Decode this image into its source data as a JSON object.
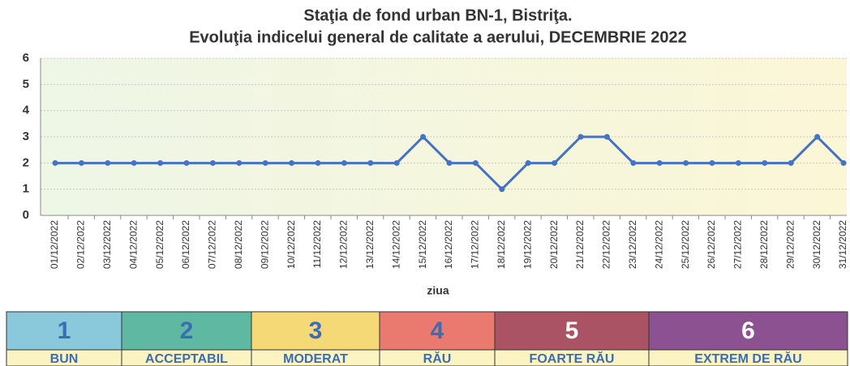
{
  "chart_data": {
    "type": "line",
    "title": "Staţia de fond urban BN-1, Bistriţa.",
    "subtitle": "Evoluţia indicelui general de calitate a aerului, DECEMBRIE 2022",
    "xlabel": "ziua",
    "categories": [
      "01/12/2022",
      "02/12/2022",
      "03/12/2022",
      "04/12/2022",
      "05/12/2022",
      "06/12/2022",
      "07/12/2022",
      "08/12/2022",
      "09/12/2022",
      "10/12/2022",
      "11/12/2022",
      "12/12/2022",
      "13/12/2022",
      "14/12/2022",
      "15/12/2022",
      "16/12/2022",
      "17/12/2022",
      "18/12/2022",
      "19/12/2022",
      "20/12/2022",
      "21/12/2022",
      "22/12/2022",
      "23/12/2022",
      "24/12/2022",
      "25/12/2022",
      "26/12/2022",
      "27/12/2022",
      "28/12/2022",
      "29/12/2022",
      "30/12/2022",
      "31/12/2022"
    ],
    "values": [
      2,
      2,
      2,
      2,
      2,
      2,
      2,
      2,
      2,
      2,
      2,
      2,
      2,
      2,
      3,
      2,
      2,
      1,
      2,
      2,
      3,
      3,
      2,
      2,
      2,
      2,
      2,
      2,
      2,
      3,
      2
    ],
    "color": "#4472c4",
    "ylim": [
      0,
      6
    ],
    "yticks": [
      0,
      1,
      2,
      3,
      4,
      5,
      6
    ],
    "grid": true,
    "index_scale": [
      {
        "value": "1",
        "label": "BUN",
        "color": "#8ac8dc",
        "text_color": "#3a6db5"
      },
      {
        "value": "2",
        "label": "ACCEPTABIL",
        "color": "#5fb8a2",
        "text_color": "#3a6db5"
      },
      {
        "value": "3",
        "label": "MODERAT",
        "color": "#f6d977",
        "text_color": "#3a6db5"
      },
      {
        "value": "4",
        "label": "RĂU",
        "color": "#ea7a70",
        "text_color": "#3a6db5"
      },
      {
        "value": "5",
        "label": "FOARTE RĂU",
        "color": "#aa5364",
        "text_color": "#ffffff"
      },
      {
        "value": "6",
        "label": "EXTREM DE RĂU",
        "color": "#8b5190",
        "text_color": "#ffffff"
      }
    ]
  }
}
